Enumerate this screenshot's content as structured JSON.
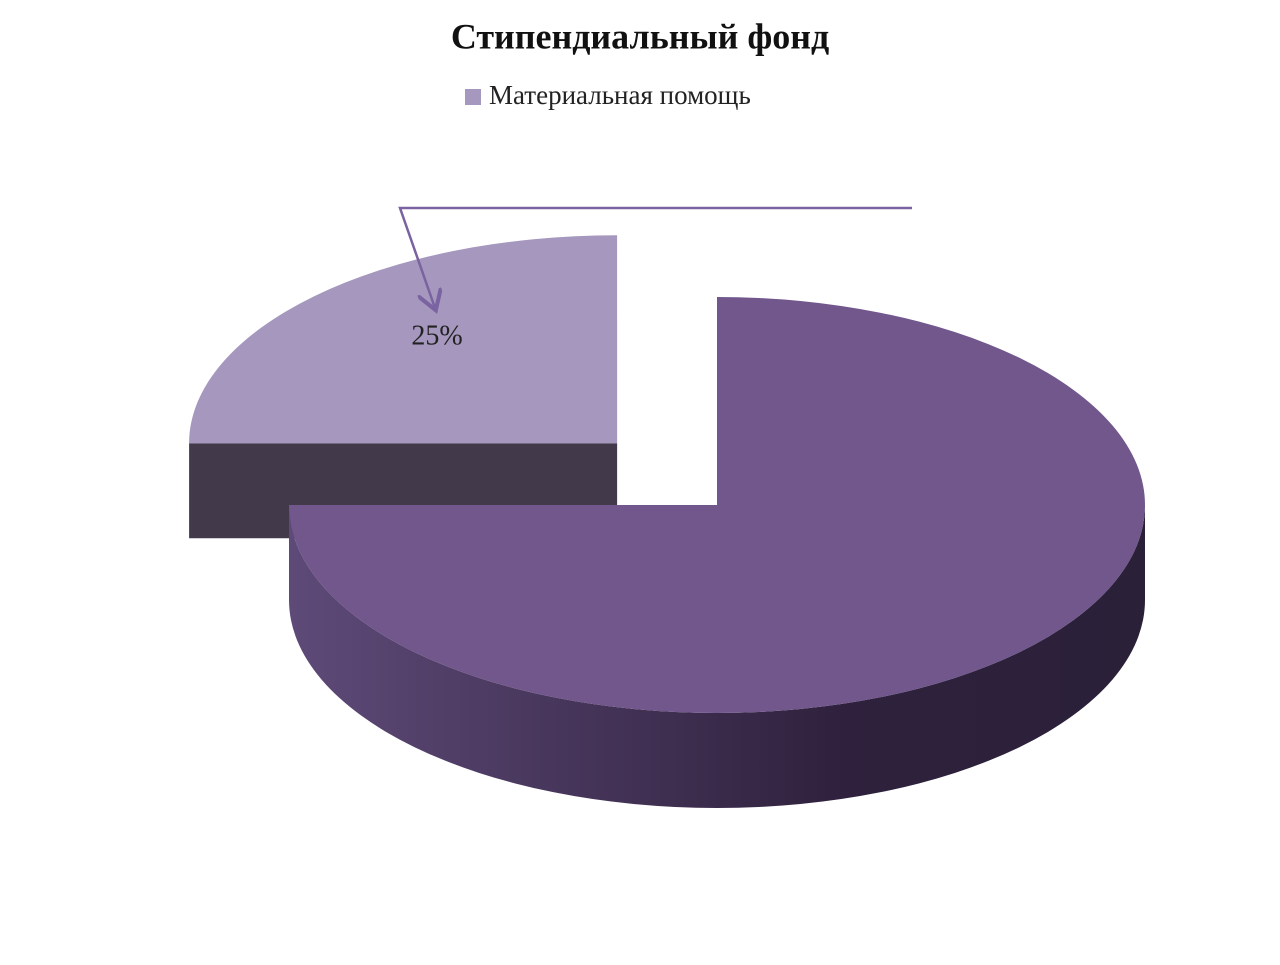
{
  "chart_data": {
    "type": "pie3d",
    "title": "Стипендиальный фонд",
    "categories": [
      "Материальная помощь",
      null
    ],
    "values": [
      25,
      75
    ],
    "value_labels": [
      "25%",
      null
    ],
    "colors": [
      "#a597bd",
      "#71578c"
    ],
    "legend": "top"
  }
}
